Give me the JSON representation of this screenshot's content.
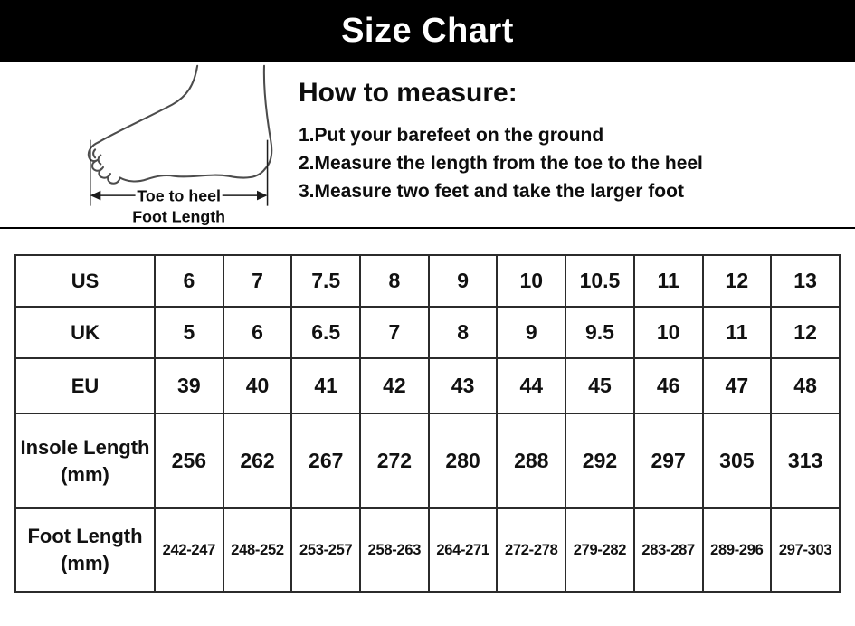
{
  "header": {
    "title": "Size Chart"
  },
  "measure": {
    "heading": "How to measure:",
    "steps": [
      "1.Put your barefeet on the ground",
      "2.Measure the length from the toe to the heel",
      "3.Measure two feet and take the larger foot"
    ],
    "diagram": {
      "icon": "foot-outline-drawing",
      "arrow_label": "Toe to heel",
      "arrow_sublabel": "Foot Length"
    }
  },
  "chart_data": {
    "type": "table",
    "title": "Size Chart",
    "row_headers": [
      "US",
      "UK",
      "EU",
      "Insole Length (mm)",
      "Foot Length (mm)"
    ],
    "rows": [
      {
        "key": "us",
        "label": "US",
        "display_label": "US",
        "values": [
          "6",
          "7",
          "7.5",
          "8",
          "9",
          "10",
          "10.5",
          "11",
          "12",
          "13"
        ]
      },
      {
        "key": "uk",
        "label": "UK",
        "display_label": "UK",
        "values": [
          "5",
          "6",
          "6.5",
          "7",
          "8",
          "9",
          "9.5",
          "10",
          "11",
          "12"
        ]
      },
      {
        "key": "eu",
        "label": "EU",
        "display_label": "EU",
        "values": [
          "39",
          "40",
          "41",
          "42",
          "43",
          "44",
          "45",
          "46",
          "47",
          "48"
        ]
      },
      {
        "key": "insole-length",
        "label": "Insole Length (mm)",
        "display_label": "Insole Length\n(mm)",
        "values": [
          "256",
          "262",
          "267",
          "272",
          "280",
          "288",
          "292",
          "297",
          "305",
          "313"
        ]
      },
      {
        "key": "foot-length",
        "label": "Foot Length (mm)",
        "display_label": "Foot Length\n(mm)",
        "values": [
          "242-247",
          "248-252",
          "253-257",
          "258-263",
          "264-271",
          "272-278",
          "279-282",
          "283-287",
          "289-296",
          "297-303"
        ]
      }
    ],
    "colors": {
      "title_bar_bg": "#000000",
      "title_text": "#ffffff",
      "table_border": "#2b2b2b"
    }
  }
}
